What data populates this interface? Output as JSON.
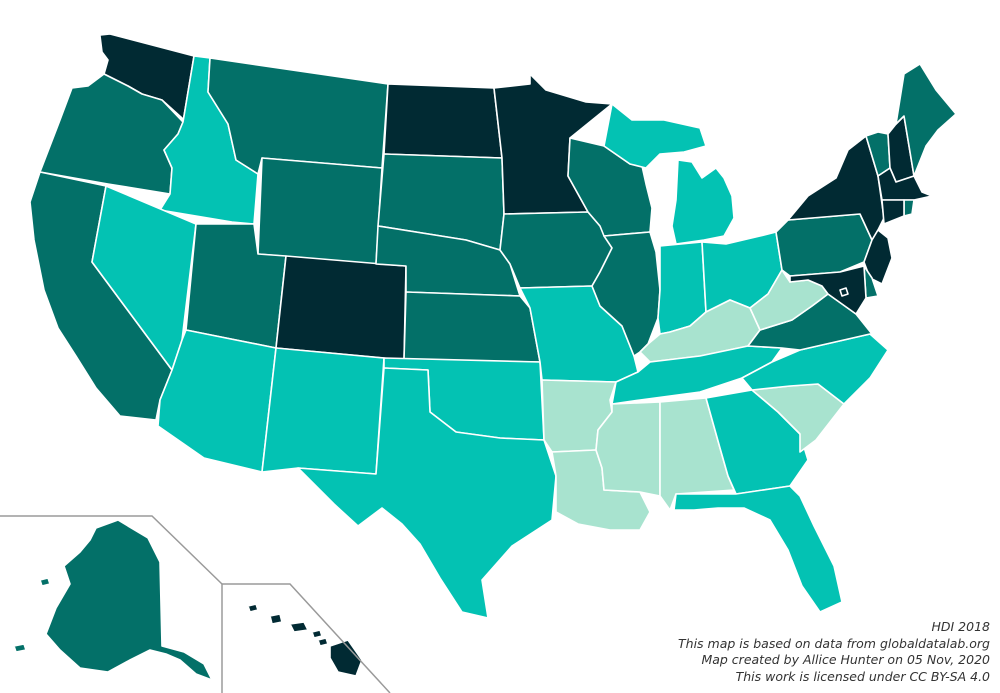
{
  "map": {
    "colors": {
      "very_high": "#012a33",
      "high": "#037068",
      "medium": "#03c2b3",
      "low": "#a8e3cf",
      "border": "#ffffff",
      "inset_frame": "#9a9a9a"
    },
    "states": [
      {
        "name": "Washington",
        "class": "very_high"
      },
      {
        "name": "Oregon",
        "class": "high"
      },
      {
        "name": "California",
        "class": "high"
      },
      {
        "name": "Idaho",
        "class": "medium"
      },
      {
        "name": "Nevada",
        "class": "medium"
      },
      {
        "name": "Montana",
        "class": "high"
      },
      {
        "name": "Wyoming",
        "class": "high"
      },
      {
        "name": "Utah",
        "class": "high"
      },
      {
        "name": "Arizona",
        "class": "medium"
      },
      {
        "name": "Colorado",
        "class": "very_high"
      },
      {
        "name": "New Mexico",
        "class": "medium"
      },
      {
        "name": "North Dakota",
        "class": "very_high"
      },
      {
        "name": "South Dakota",
        "class": "high"
      },
      {
        "name": "Nebraska",
        "class": "high"
      },
      {
        "name": "Kansas",
        "class": "high"
      },
      {
        "name": "Oklahoma",
        "class": "medium"
      },
      {
        "name": "Texas",
        "class": "medium"
      },
      {
        "name": "Minnesota",
        "class": "very_high"
      },
      {
        "name": "Iowa",
        "class": "high"
      },
      {
        "name": "Missouri",
        "class": "medium"
      },
      {
        "name": "Arkansas",
        "class": "low"
      },
      {
        "name": "Louisiana",
        "class": "low"
      },
      {
        "name": "Wisconsin",
        "class": "high"
      },
      {
        "name": "Illinois",
        "class": "high"
      },
      {
        "name": "Michigan",
        "class": "medium"
      },
      {
        "name": "Indiana",
        "class": "medium"
      },
      {
        "name": "Ohio",
        "class": "medium"
      },
      {
        "name": "Kentucky",
        "class": "low"
      },
      {
        "name": "Tennessee",
        "class": "medium"
      },
      {
        "name": "Mississippi",
        "class": "low"
      },
      {
        "name": "Alabama",
        "class": "low"
      },
      {
        "name": "Georgia",
        "class": "medium"
      },
      {
        "name": "Florida",
        "class": "medium"
      },
      {
        "name": "South Carolina",
        "class": "low"
      },
      {
        "name": "North Carolina",
        "class": "medium"
      },
      {
        "name": "Virginia",
        "class": "high"
      },
      {
        "name": "West Virginia",
        "class": "low"
      },
      {
        "name": "Pennsylvania",
        "class": "high"
      },
      {
        "name": "New York",
        "class": "very_high"
      },
      {
        "name": "Vermont",
        "class": "high"
      },
      {
        "name": "New Hampshire",
        "class": "very_high"
      },
      {
        "name": "Maine",
        "class": "high"
      },
      {
        "name": "Massachusetts",
        "class": "very_high"
      },
      {
        "name": "Rhode Island",
        "class": "high"
      },
      {
        "name": "Connecticut",
        "class": "very_high"
      },
      {
        "name": "New Jersey",
        "class": "very_high"
      },
      {
        "name": "Delaware",
        "class": "high"
      },
      {
        "name": "Maryland",
        "class": "very_high"
      },
      {
        "name": "District of Columbia",
        "class": "very_high"
      },
      {
        "name": "Alaska",
        "class": "high"
      },
      {
        "name": "Hawaii",
        "class": "very_high"
      }
    ]
  },
  "caption": {
    "line1": "HDI 2018",
    "line2": "This map is based on data from globaldatalab.org",
    "line3": "Map created by Allice Hunter on 05 Nov, 2020",
    "line4": "This work is licensed under CC BY-SA 4.0"
  }
}
